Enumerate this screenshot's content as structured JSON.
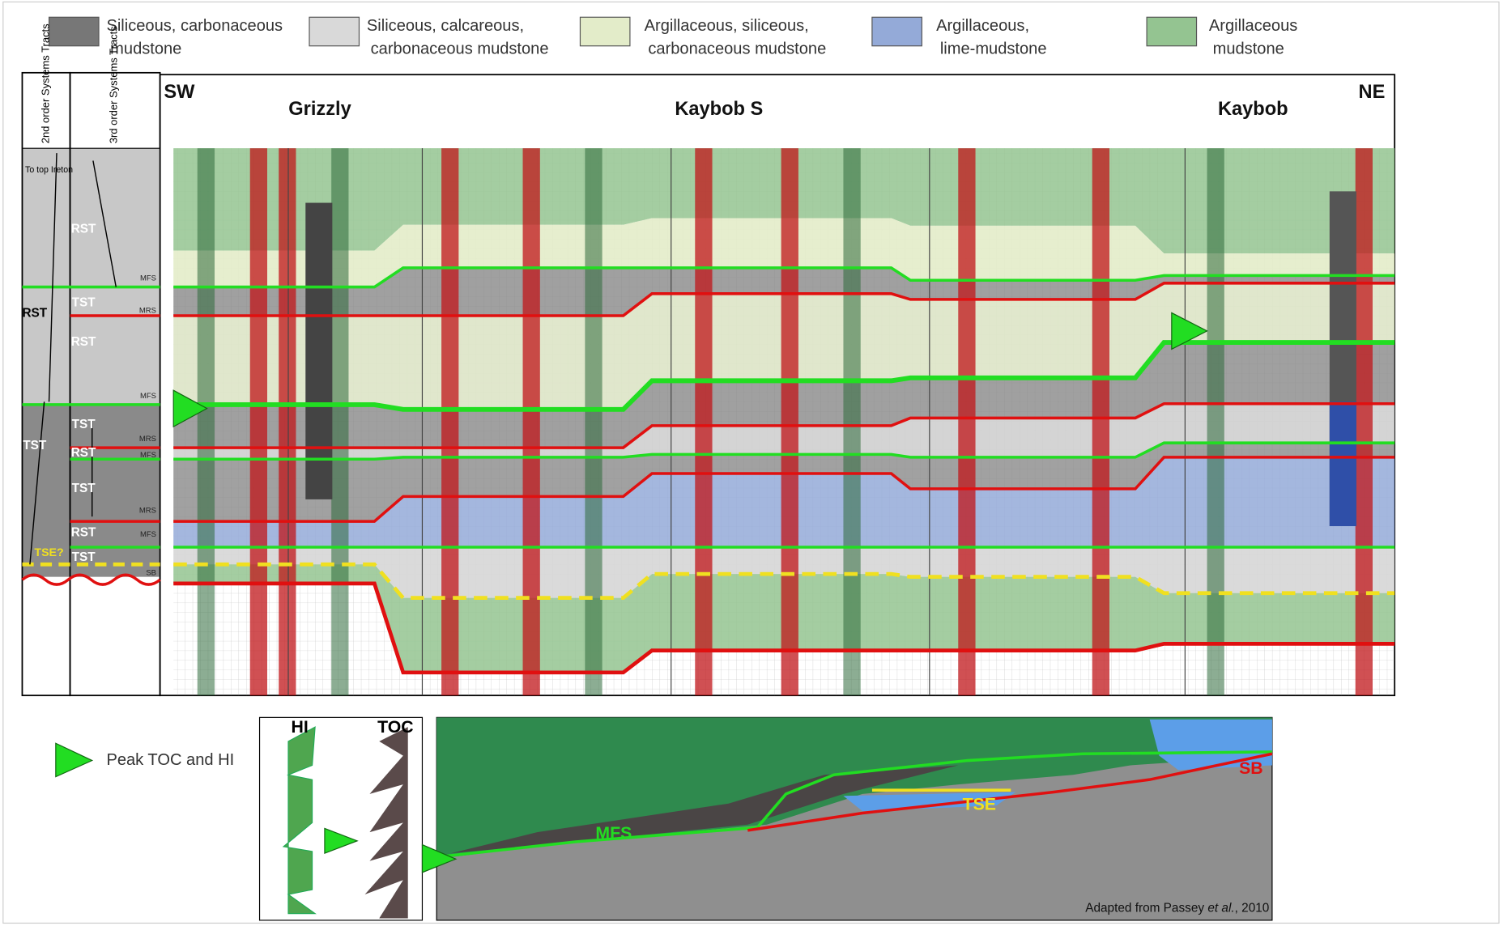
{
  "legend": [
    {
      "label": "Siliceous, carbonaceous mudstone",
      "color": "#777777"
    },
    {
      "label": "Siliceous, calcareous, carbonaceous mudstone",
      "color": "#d9d9d9"
    },
    {
      "label": "Argillaceous, siliceous, carbonaceous mudstone",
      "color": "#e3ecc9"
    },
    {
      "label": "Argillaceous, lime-mudstone",
      "color": "#94aad8"
    },
    {
      "label": "Argillaceous mudstone",
      "color": "#94c491"
    }
  ],
  "headers": {
    "second_order": "2nd order Systems Tracts",
    "third_order": "3rd order Systems Tracts"
  },
  "directions": {
    "left": "SW",
    "right": "NE"
  },
  "wells": [
    "Grizzly",
    "Kaybob S",
    "Kaybob"
  ],
  "second_order_tracts": [
    "To top Ireton",
    "RST",
    "TST",
    "TSE?"
  ],
  "third_order_tracts": [
    "RST",
    "TST",
    "RST",
    "TST",
    "RST",
    "TST",
    "RST",
    "TST"
  ],
  "surfaces": [
    "MFS",
    "MRS",
    "MFS",
    "MRS",
    "MFS",
    "MRS",
    "MFS",
    "SB"
  ],
  "key": {
    "label": "Peak TOC and HI"
  },
  "model": {
    "hi": "HI",
    "toc": "TOC",
    "mfs": "MFS",
    "tse": "TSE",
    "sb": "SB",
    "credit": [
      "Adapted from Passey ",
      "et al.",
      ", 2010"
    ]
  }
}
